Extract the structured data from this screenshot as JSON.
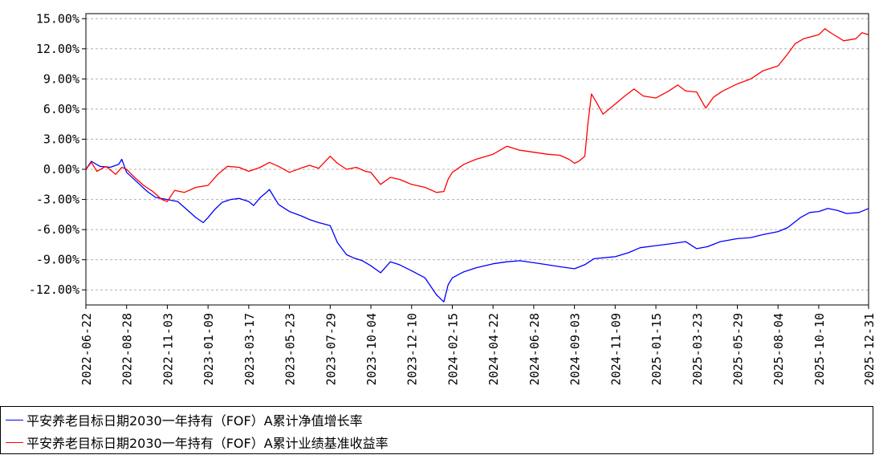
{
  "colors": {
    "nav": "#0000ff",
    "benchmark": "#ff0000",
    "grid": "#b0b0b0",
    "axis": "#000000"
  },
  "chart_data": {
    "type": "line",
    "title": "",
    "xlabel": "",
    "ylabel": "",
    "x_range": [
      "2022-06-22",
      "2025-12-31"
    ],
    "ylim": [
      -13.5,
      15.5
    ],
    "y_ticks": [
      15,
      12,
      9,
      6,
      3,
      0,
      -3,
      -6,
      -9,
      -12
    ],
    "y_tick_labels": [
      "15.00%",
      "12.00%",
      "9.00%",
      "6.00%",
      "3.00%",
      "0.00%",
      "-3.00%",
      "-6.00%",
      "-9.00%",
      "-12.00%"
    ],
    "x_ticks": [
      "2022-06-22",
      "2022-08-28",
      "2022-11-03",
      "2023-01-09",
      "2023-03-17",
      "2023-05-23",
      "2023-07-29",
      "2023-10-04",
      "2023-12-10",
      "2024-02-15",
      "2024-04-22",
      "2024-06-28",
      "2024-09-03",
      "2024-11-09",
      "2025-01-15",
      "2025-03-23",
      "2025-05-29",
      "2025-08-04",
      "2025-10-10",
      "2025-12-31"
    ],
    "grid": true,
    "legend_position": "bottom",
    "series": [
      {
        "name": "平安养老目标日期2030一年持有（FOF）A累计净值增长率",
        "color": "#0000ff",
        "points": [
          [
            "2022-06-22",
            0.0
          ],
          [
            "2022-07-01",
            0.8
          ],
          [
            "2022-07-15",
            0.3
          ],
          [
            "2022-08-01",
            0.2
          ],
          [
            "2022-08-15",
            0.5
          ],
          [
            "2022-08-20",
            1.0
          ],
          [
            "2022-08-28",
            -0.3
          ],
          [
            "2022-09-15",
            -1.3
          ],
          [
            "2022-10-01",
            -2.2
          ],
          [
            "2022-10-15",
            -2.8
          ],
          [
            "2022-11-03",
            -3.0
          ],
          [
            "2022-11-20",
            -3.2
          ],
          [
            "2022-12-05",
            -4.0
          ],
          [
            "2022-12-20",
            -4.8
          ],
          [
            "2023-01-01",
            -5.3
          ],
          [
            "2023-01-09",
            -4.8
          ],
          [
            "2023-01-20",
            -4.0
          ],
          [
            "2023-02-01",
            -3.3
          ],
          [
            "2023-02-15",
            -3.0
          ],
          [
            "2023-03-01",
            -2.9
          ],
          [
            "2023-03-17",
            -3.2
          ],
          [
            "2023-03-25",
            -3.6
          ],
          [
            "2023-04-05",
            -2.8
          ],
          [
            "2023-04-15",
            -2.3
          ],
          [
            "2023-04-20",
            -2.0
          ],
          [
            "2023-05-05",
            -3.5
          ],
          [
            "2023-05-23",
            -4.2
          ],
          [
            "2023-06-10",
            -4.6
          ],
          [
            "2023-06-25",
            -5.0
          ],
          [
            "2023-07-10",
            -5.3
          ],
          [
            "2023-07-29",
            -5.6
          ],
          [
            "2023-08-10",
            -7.3
          ],
          [
            "2023-08-25",
            -8.5
          ],
          [
            "2023-09-05",
            -8.8
          ],
          [
            "2023-09-20",
            -9.1
          ],
          [
            "2023-10-04",
            -9.6
          ],
          [
            "2023-10-20",
            -10.3
          ],
          [
            "2023-11-05",
            -9.2
          ],
          [
            "2023-11-20",
            -9.5
          ],
          [
            "2023-12-10",
            -10.1
          ],
          [
            "2024-01-01",
            -10.8
          ],
          [
            "2024-01-20",
            -12.5
          ],
          [
            "2024-02-01",
            -13.2
          ],
          [
            "2024-02-08",
            -11.5
          ],
          [
            "2024-02-15",
            -10.8
          ],
          [
            "2024-03-05",
            -10.2
          ],
          [
            "2024-03-25",
            -9.8
          ],
          [
            "2024-04-22",
            -9.4
          ],
          [
            "2024-05-15",
            -9.2
          ],
          [
            "2024-06-05",
            -9.1
          ],
          [
            "2024-06-28",
            -9.3
          ],
          [
            "2024-07-20",
            -9.5
          ],
          [
            "2024-08-10",
            -9.7
          ],
          [
            "2024-09-03",
            -9.9
          ],
          [
            "2024-09-20",
            -9.5
          ],
          [
            "2024-10-05",
            -8.9
          ],
          [
            "2024-11-09",
            -8.7
          ],
          [
            "2024-12-01",
            -8.3
          ],
          [
            "2024-12-20",
            -7.8
          ],
          [
            "2025-01-15",
            -7.6
          ],
          [
            "2025-02-10",
            -7.4
          ],
          [
            "2025-03-05",
            -7.2
          ],
          [
            "2025-03-23",
            -7.9
          ],
          [
            "2025-04-10",
            -7.7
          ],
          [
            "2025-05-01",
            -7.2
          ],
          [
            "2025-05-29",
            -6.9
          ],
          [
            "2025-06-20",
            -6.8
          ],
          [
            "2025-07-10",
            -6.5
          ],
          [
            "2025-08-04",
            -6.2
          ],
          [
            "2025-08-20",
            -5.8
          ],
          [
            "2025-09-10",
            -4.8
          ],
          [
            "2025-09-25",
            -4.3
          ],
          [
            "2025-10-10",
            -4.2
          ],
          [
            "2025-10-25",
            -3.9
          ],
          [
            "2025-11-10",
            -4.1
          ],
          [
            "2025-11-25",
            -4.4
          ],
          [
            "2025-12-15",
            -4.3
          ],
          [
            "2025-12-31",
            -3.9
          ]
        ]
      },
      {
        "name": "平安养老目标日期2030一年持有（FOF）A累计业绩基准收益率",
        "color": "#ff0000",
        "points": [
          [
            "2022-06-22",
            0.0
          ],
          [
            "2022-07-01",
            0.7
          ],
          [
            "2022-07-10",
            -0.2
          ],
          [
            "2022-07-25",
            0.3
          ],
          [
            "2022-08-10",
            -0.5
          ],
          [
            "2022-08-20",
            0.2
          ],
          [
            "2022-08-28",
            0.0
          ],
          [
            "2022-09-10",
            -0.8
          ],
          [
            "2022-09-25",
            -1.6
          ],
          [
            "2022-10-10",
            -2.2
          ],
          [
            "2022-10-25",
            -3.0
          ],
          [
            "2022-11-03",
            -3.2
          ],
          [
            "2022-11-15",
            -2.1
          ],
          [
            "2022-12-01",
            -2.3
          ],
          [
            "2022-12-20",
            -1.8
          ],
          [
            "2023-01-09",
            -1.6
          ],
          [
            "2023-01-25",
            -0.5
          ],
          [
            "2023-02-10",
            0.3
          ],
          [
            "2023-03-01",
            0.2
          ],
          [
            "2023-03-17",
            -0.2
          ],
          [
            "2023-04-05",
            0.2
          ],
          [
            "2023-04-20",
            0.7
          ],
          [
            "2023-05-05",
            0.3
          ],
          [
            "2023-05-23",
            -0.3
          ],
          [
            "2023-06-10",
            0.1
          ],
          [
            "2023-06-25",
            0.4
          ],
          [
            "2023-07-10",
            0.1
          ],
          [
            "2023-07-29",
            1.3
          ],
          [
            "2023-08-10",
            0.6
          ],
          [
            "2023-08-25",
            0.0
          ],
          [
            "2023-09-10",
            0.2
          ],
          [
            "2023-09-25",
            -0.2
          ],
          [
            "2023-10-04",
            -0.3
          ],
          [
            "2023-10-20",
            -1.5
          ],
          [
            "2023-11-05",
            -0.8
          ],
          [
            "2023-11-20",
            -1.0
          ],
          [
            "2023-12-10",
            -1.5
          ],
          [
            "2024-01-01",
            -1.8
          ],
          [
            "2024-01-20",
            -2.3
          ],
          [
            "2024-02-01",
            -2.2
          ],
          [
            "2024-02-08",
            -1.0
          ],
          [
            "2024-02-15",
            -0.3
          ],
          [
            "2024-03-05",
            0.5
          ],
          [
            "2024-03-25",
            1.0
          ],
          [
            "2024-04-22",
            1.5
          ],
          [
            "2024-05-15",
            2.3
          ],
          [
            "2024-06-05",
            1.9
          ],
          [
            "2024-06-28",
            1.7
          ],
          [
            "2024-07-20",
            1.5
          ],
          [
            "2024-08-10",
            1.4
          ],
          [
            "2024-08-25",
            1.0
          ],
          [
            "2024-09-03",
            0.6
          ],
          [
            "2024-09-10",
            0.8
          ],
          [
            "2024-09-20",
            1.3
          ],
          [
            "2024-09-25",
            4.5
          ],
          [
            "2024-10-01",
            7.5
          ],
          [
            "2024-10-08",
            6.8
          ],
          [
            "2024-10-20",
            5.5
          ],
          [
            "2024-11-09",
            6.5
          ],
          [
            "2024-11-25",
            7.3
          ],
          [
            "2024-12-10",
            8.0
          ],
          [
            "2024-12-25",
            7.3
          ],
          [
            "2025-01-15",
            7.1
          ],
          [
            "2025-02-05",
            7.8
          ],
          [
            "2025-02-20",
            8.4
          ],
          [
            "2025-03-05",
            7.8
          ],
          [
            "2025-03-23",
            7.7
          ],
          [
            "2025-04-07",
            6.1
          ],
          [
            "2025-04-20",
            7.2
          ],
          [
            "2025-05-05",
            7.8
          ],
          [
            "2025-05-29",
            8.5
          ],
          [
            "2025-06-20",
            9.0
          ],
          [
            "2025-07-10",
            9.8
          ],
          [
            "2025-08-04",
            10.3
          ],
          [
            "2025-08-20",
            11.5
          ],
          [
            "2025-09-01",
            12.5
          ],
          [
            "2025-09-15",
            13.0
          ],
          [
            "2025-10-10",
            13.4
          ],
          [
            "2025-10-20",
            14.0
          ],
          [
            "2025-11-01",
            13.5
          ],
          [
            "2025-11-20",
            12.8
          ],
          [
            "2025-12-10",
            13.0
          ],
          [
            "2025-12-20",
            13.6
          ],
          [
            "2025-12-31",
            13.4
          ]
        ]
      }
    ]
  }
}
